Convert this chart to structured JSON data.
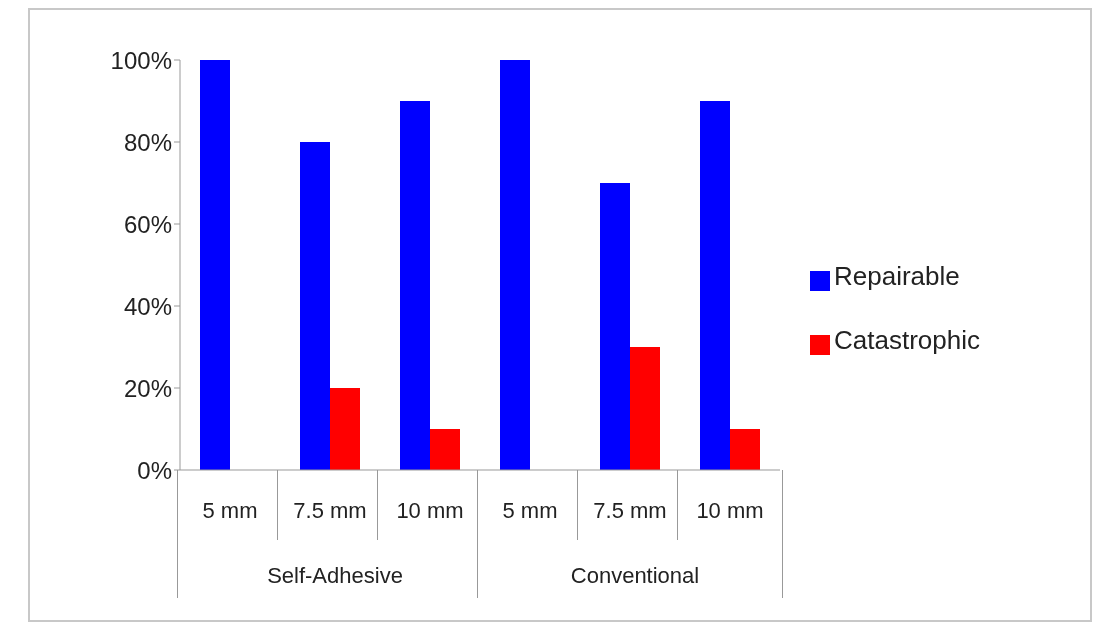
{
  "chart_data": {
    "type": "bar",
    "categories": [
      "5 mm",
      "7.5 mm",
      "10 mm",
      "5 mm",
      "7.5 mm",
      "10 mm"
    ],
    "series": [
      {
        "name": "Repairable",
        "color": "#0000ff",
        "values": [
          100,
          80,
          90,
          100,
          70,
          90
        ]
      },
      {
        "name": "Catastrophic",
        "color": "#ff0000",
        "values": [
          0,
          20,
          10,
          0,
          30,
          10
        ]
      }
    ],
    "ylim": [
      0,
      100
    ],
    "yticks": [
      {
        "value": 0,
        "label": "0%"
      },
      {
        "value": 20,
        "label": "20%"
      },
      {
        "value": 40,
        "label": "40%"
      },
      {
        "value": 60,
        "label": "60%"
      },
      {
        "value": 80,
        "label": "80%"
      },
      {
        "value": 100,
        "label": "100%"
      }
    ],
    "annotations": [
      "Self-Adhesive",
      "Conventional"
    ],
    "grid": false,
    "legend": "right"
  }
}
